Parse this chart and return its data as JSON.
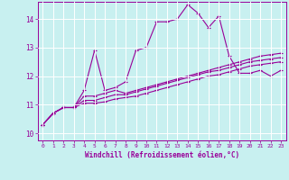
{
  "xlabel": "Windchill (Refroidissement éolien,°C)",
  "bg_color": "#c8f0f0",
  "line_color": "#990099",
  "grid_color": "#b0e0e0",
  "xlim": [
    -0.5,
    23.5
  ],
  "ylim": [
    9.75,
    14.6
  ],
  "xticks": [
    0,
    1,
    2,
    3,
    4,
    5,
    6,
    7,
    8,
    9,
    10,
    11,
    12,
    13,
    14,
    15,
    16,
    17,
    18,
    19,
    20,
    21,
    22,
    23
  ],
  "yticks": [
    10,
    11,
    12,
    13,
    14
  ],
  "series": [
    [
      10.3,
      10.7,
      10.9,
      10.9,
      11.5,
      12.9,
      11.5,
      11.6,
      11.8,
      12.9,
      13.0,
      13.9,
      13.9,
      14.0,
      14.5,
      14.2,
      13.7,
      14.1,
      12.7,
      12.1,
      12.1,
      12.2,
      12.0,
      12.2
    ],
    [
      10.3,
      10.7,
      10.9,
      10.9,
      11.3,
      11.3,
      11.4,
      11.5,
      11.4,
      11.5,
      11.6,
      11.7,
      11.8,
      11.9,
      12.0,
      12.1,
      12.2,
      12.3,
      12.4,
      12.5,
      12.6,
      12.7,
      12.75,
      12.8
    ],
    [
      10.3,
      10.7,
      10.9,
      10.9,
      11.15,
      11.15,
      11.25,
      11.35,
      11.35,
      11.45,
      11.55,
      11.65,
      11.75,
      11.85,
      11.95,
      12.05,
      12.15,
      12.2,
      12.3,
      12.4,
      12.5,
      12.55,
      12.6,
      12.65
    ],
    [
      10.3,
      10.7,
      10.9,
      10.9,
      11.05,
      11.05,
      11.1,
      11.2,
      11.25,
      11.3,
      11.4,
      11.5,
      11.6,
      11.7,
      11.8,
      11.9,
      12.0,
      12.05,
      12.15,
      12.25,
      12.35,
      12.4,
      12.45,
      12.5
    ]
  ]
}
